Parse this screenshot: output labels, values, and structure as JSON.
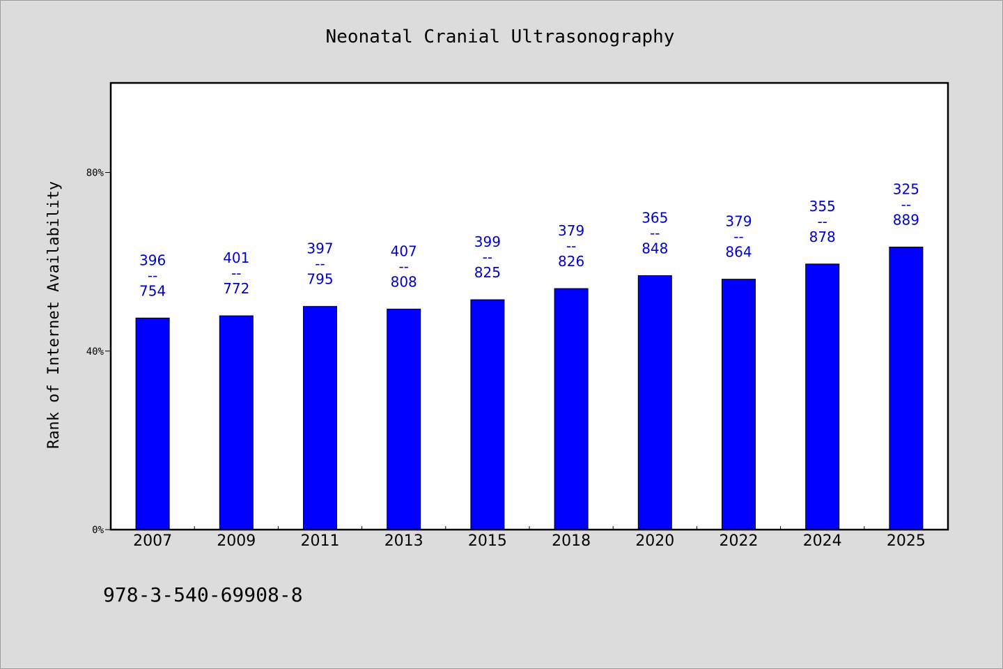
{
  "chart_data": {
    "type": "bar",
    "title": "Neonatal Cranial Ultrasonography",
    "xlabel": "",
    "ylabel": "Rank of Internet Availability",
    "ylim": [
      0,
      100
    ],
    "yticks": [
      {
        "value": 0,
        "label": "0%"
      },
      {
        "value": 40,
        "label": "40%"
      },
      {
        "value": 80,
        "label": "80%"
      }
    ],
    "categories": [
      "2007",
      "2009",
      "2011",
      "2013",
      "2015",
      "2018",
      "2020",
      "2022",
      "2024",
      "2025"
    ],
    "values": [
      47.4,
      47.9,
      50.0,
      49.4,
      51.5,
      54.0,
      56.9,
      56.1,
      59.5,
      63.3
    ],
    "data_labels": [
      {
        "top": "396",
        "sep": "--",
        "bottom": "754"
      },
      {
        "top": "401",
        "sep": "--",
        "bottom": "772"
      },
      {
        "top": "397",
        "sep": "--",
        "bottom": "795"
      },
      {
        "top": "407",
        "sep": "--",
        "bottom": "808"
      },
      {
        "top": "399",
        "sep": "--",
        "bottom": "825"
      },
      {
        "top": "379",
        "sep": "--",
        "bottom": "826"
      },
      {
        "top": "365",
        "sep": "--",
        "bottom": "848"
      },
      {
        "top": "379",
        "sep": "--",
        "bottom": "864"
      },
      {
        "top": "355",
        "sep": "--",
        "bottom": "878"
      },
      {
        "top": "325",
        "sep": "--",
        "bottom": "889"
      }
    ],
    "bar_color": "#0000ff",
    "label_color": "#0000cc",
    "grid": false,
    "legend": "none"
  },
  "footer": {
    "isbn": "978-3-540-69908-8"
  }
}
